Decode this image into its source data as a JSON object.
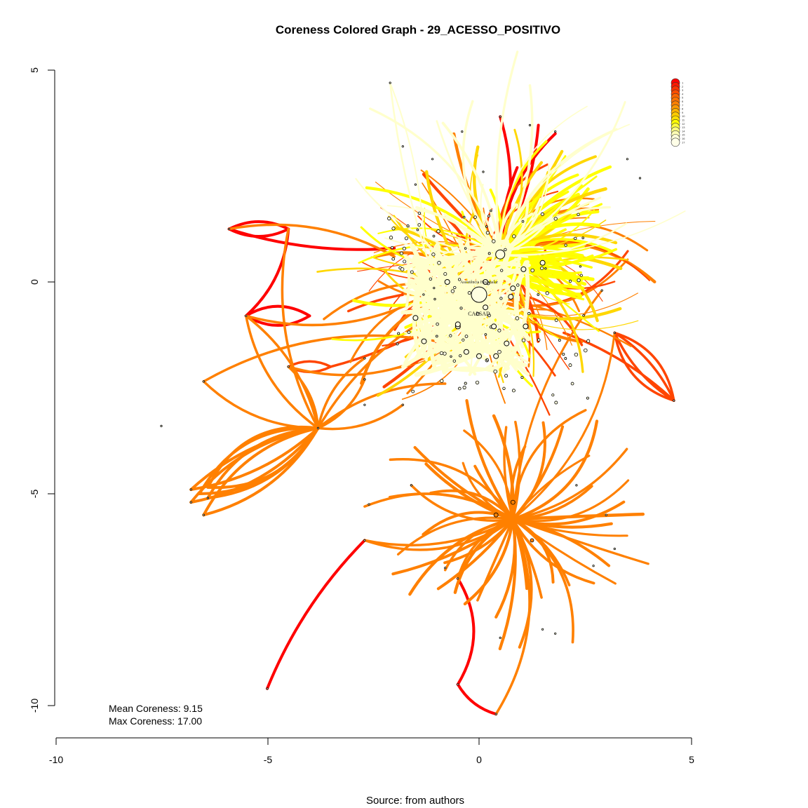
{
  "title": "Coreness Colored Graph - 29_ACESSO_POSITIVO",
  "caption": "Source: from authors",
  "stats": {
    "mean": "Mean Coreness: 9.15",
    "max": "Max Coreness: 17.00"
  },
  "chart_data": {
    "type": "network",
    "x_axis": {
      "ticks": [
        "-10",
        "-5",
        "0",
        "5"
      ],
      "range": [
        -10,
        5
      ]
    },
    "y_axis": {
      "ticks": [
        "5",
        "0",
        "-5",
        "-10"
      ],
      "range": [
        -10,
        5
      ]
    },
    "node_labels": [
      "CAPSAD",
      "Assistência Hospitalar"
    ],
    "legend": {
      "position": "top-right",
      "levels": [
        "1",
        "2",
        "3",
        "4",
        "5",
        "6",
        "7",
        "8",
        "9",
        "10",
        "11",
        "12",
        "13",
        "14",
        "15",
        "16",
        "17"
      ],
      "colors": [
        "#ff0000",
        "#ff1a00",
        "#ff3300",
        "#ff4d00",
        "#ff6600",
        "#ff7300",
        "#ff8000",
        "#ff9900",
        "#ffb300",
        "#ffcc00",
        "#ffe000",
        "#ffff00",
        "#ffff40",
        "#ffff80",
        "#ffffb3",
        "#ffffd9",
        "#ffffe8"
      ]
    },
    "edge_colors": {
      "low_coreness": "#ff0000",
      "mid_low": "#ff4500",
      "mid": "#ff8000",
      "mid_high": "#ffd700",
      "high": "#ffff00",
      "core": "#ffffcc"
    }
  }
}
